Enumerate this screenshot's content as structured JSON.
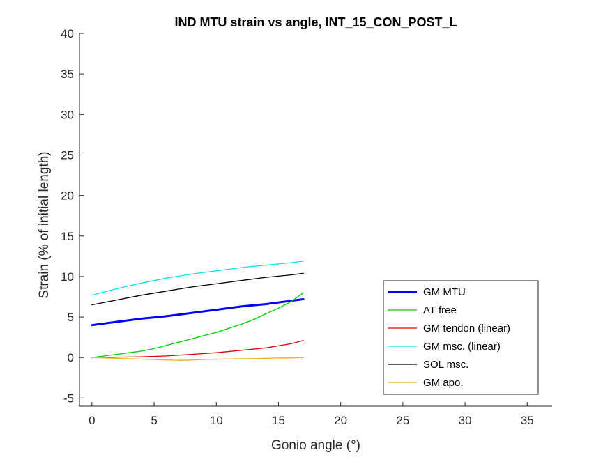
{
  "chart_data": {
    "type": "line",
    "title": "IND MTU strain vs angle, INT_15_CON_POST_L",
    "xlabel": "Gonio angle (°)",
    "ylabel": "Strain (% of initial length)",
    "xlim": [
      -1,
      37
    ],
    "ylim": [
      -6,
      40
    ],
    "xticks": [
      0,
      5,
      10,
      15,
      20,
      25,
      30,
      35
    ],
    "yticks": [
      -5,
      0,
      5,
      10,
      15,
      20,
      25,
      30,
      35,
      40
    ],
    "xtick_labels": [
      "0",
      "5",
      "10",
      "15",
      "20",
      "25",
      "30",
      "35"
    ],
    "ytick_labels": [
      "-5",
      "0",
      "5",
      "10",
      "15",
      "20",
      "25",
      "30",
      "35",
      "40"
    ],
    "grid": false,
    "legend_position": "bottom-right",
    "series": [
      {
        "name": "GM MTU",
        "color": "#0000ff",
        "x": [
          0,
          2,
          4,
          6,
          8,
          10,
          12,
          14,
          16,
          17
        ],
        "y": [
          4.0,
          4.4,
          4.8,
          5.1,
          5.5,
          5.9,
          6.3,
          6.6,
          7.0,
          7.2
        ]
      },
      {
        "name": "AT free",
        "color": "#00cc00",
        "x": [
          0,
          1,
          2,
          3,
          4,
          5,
          6,
          7,
          8,
          9,
          10,
          11,
          12,
          13,
          14,
          15,
          16,
          17
        ],
        "y": [
          0.0,
          0.2,
          0.4,
          0.6,
          0.8,
          1.1,
          1.5,
          1.9,
          2.3,
          2.7,
          3.1,
          3.6,
          4.1,
          4.7,
          5.4,
          6.1,
          6.9,
          8.0
        ]
      },
      {
        "name": "GM tendon (linear)",
        "color": "#e00000",
        "x": [
          0,
          2,
          4,
          6,
          8,
          10,
          12,
          14,
          16,
          17
        ],
        "y": [
          0.0,
          0.05,
          0.1,
          0.2,
          0.4,
          0.6,
          0.9,
          1.2,
          1.7,
          2.1
        ]
      },
      {
        "name": "GM msc. (linear)",
        "color": "#00e5ee",
        "x": [
          0,
          2,
          4,
          6,
          8,
          10,
          12,
          14,
          16,
          17
        ],
        "y": [
          7.7,
          8.5,
          9.2,
          9.8,
          10.3,
          10.7,
          11.1,
          11.4,
          11.7,
          11.9
        ]
      },
      {
        "name": "SOL msc.",
        "color": "#000000",
        "x": [
          0,
          2,
          4,
          6,
          8,
          10,
          12,
          14,
          16,
          17
        ],
        "y": [
          6.5,
          7.1,
          7.7,
          8.2,
          8.7,
          9.1,
          9.5,
          9.9,
          10.2,
          10.4
        ]
      },
      {
        "name": "GM apo.",
        "color": "#edb120",
        "x": [
          0,
          2,
          4,
          6,
          7,
          8,
          10,
          12,
          14,
          15,
          16,
          17
        ],
        "y": [
          0.0,
          -0.1,
          -0.2,
          -0.3,
          -0.35,
          -0.3,
          -0.2,
          -0.15,
          -0.1,
          -0.05,
          -0.05,
          0.0
        ]
      }
    ]
  }
}
